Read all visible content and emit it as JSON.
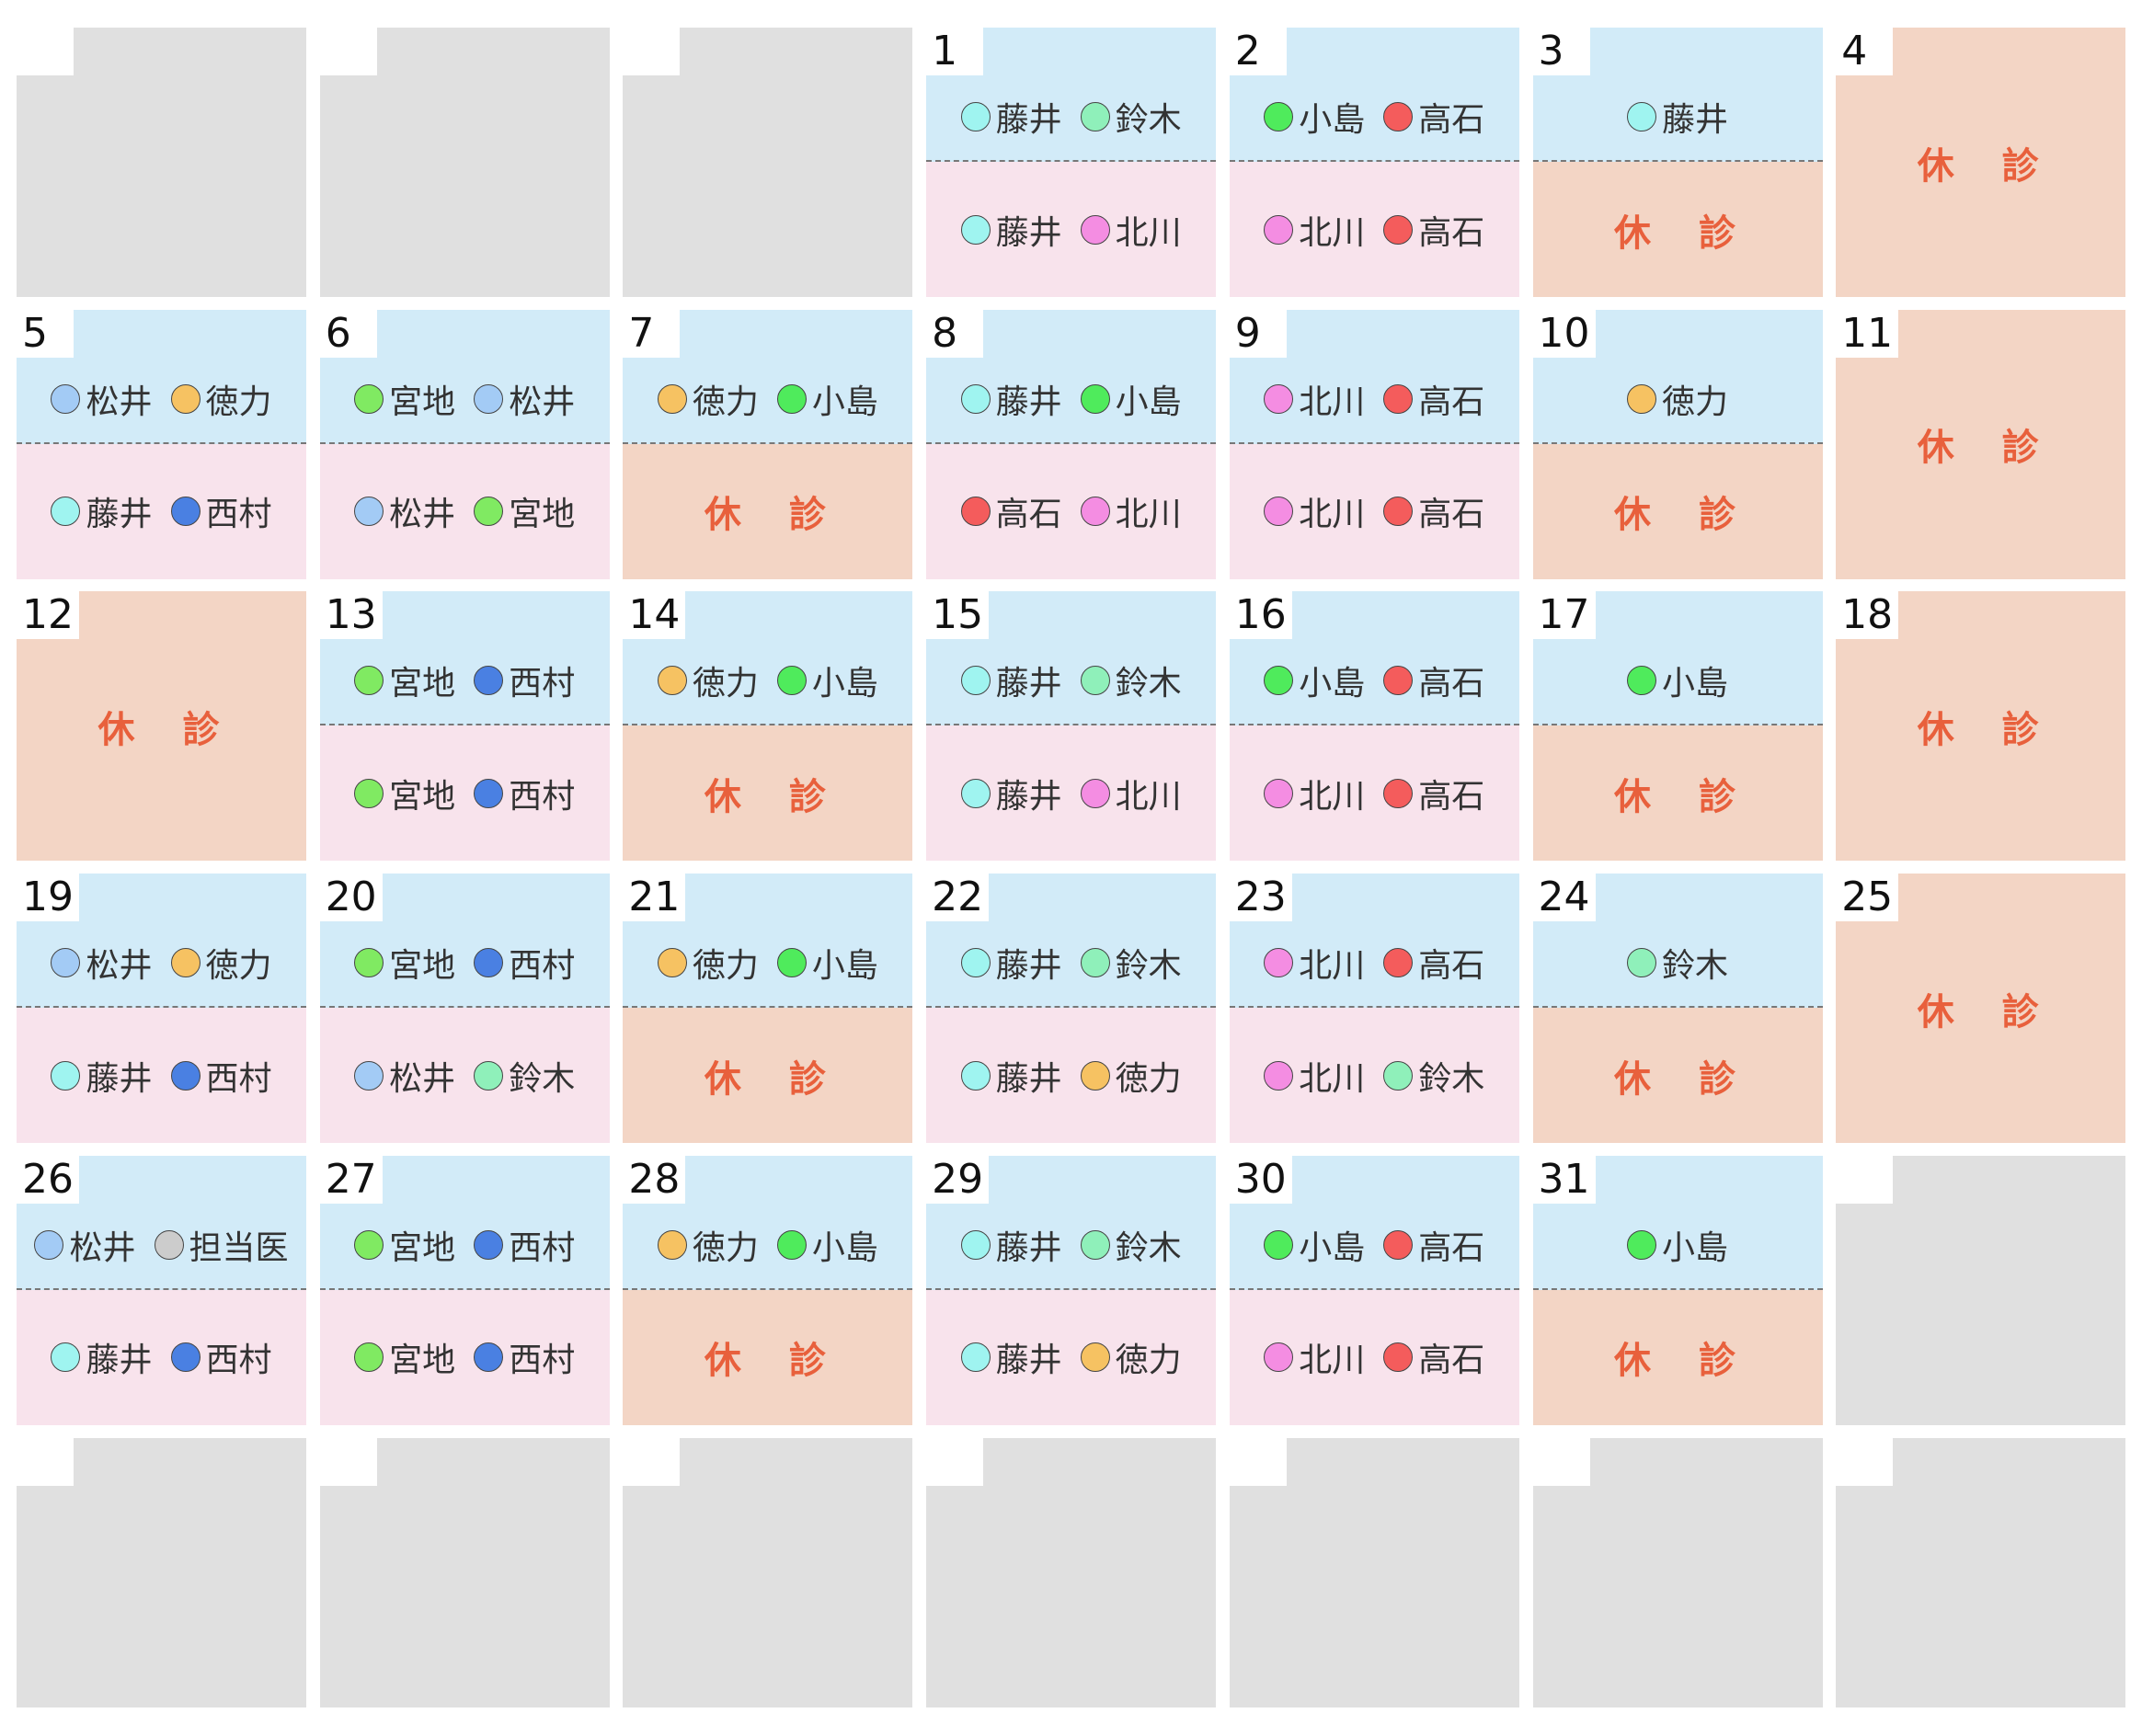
{
  "weeks": [
    [
      null,
      null,
      null,
      {
        "day": 1,
        "am": {
          "doctors": [
            {
              "name": "藤井",
              "color": "#9ff4f0"
            },
            {
              "name": "鈴木",
              "color": "#8ff0ba"
            }
          ]
        },
        "pm": {
          "doctors": [
            {
              "name": "藤井",
              "color": "#9ff4f0"
            },
            {
              "name": "北川",
              "color": "#f48de2"
            }
          ]
        }
      },
      {
        "day": 2,
        "am": {
          "doctors": [
            {
              "name": "小島",
              "color": "#4feb5c"
            },
            {
              "name": "高石",
              "color": "#f45c5c"
            }
          ]
        },
        "pm": {
          "doctors": [
            {
              "name": "北川",
              "color": "#f48de2"
            },
            {
              "name": "高石",
              "color": "#f45c5c"
            }
          ]
        }
      },
      {
        "day": 3,
        "am": {
          "doctors": [
            {
              "name": "藤井",
              "color": "#9ff4f0"
            }
          ]
        },
        "pm": {
          "closed": "休　診"
        }
      },
      {
        "day": 4,
        "closed": "休　診"
      }
    ],
    [
      {
        "day": 5,
        "am": {
          "doctors": [
            {
              "name": "松井",
              "color": "#a3cbf5"
            },
            {
              "name": "徳力",
              "color": "#f6c262"
            }
          ]
        },
        "pm": {
          "doctors": [
            {
              "name": "藤井",
              "color": "#9ff4f0"
            },
            {
              "name": "西村",
              "color": "#4a80e2"
            }
          ]
        }
      },
      {
        "day": 6,
        "am": {
          "doctors": [
            {
              "name": "宮地",
              "color": "#80ea62"
            },
            {
              "name": "松井",
              "color": "#a3cbf5"
            }
          ]
        },
        "pm": {
          "doctors": [
            {
              "name": "松井",
              "color": "#a3cbf5"
            },
            {
              "name": "宮地",
              "color": "#80ea62"
            }
          ]
        }
      },
      {
        "day": 7,
        "am": {
          "doctors": [
            {
              "name": "徳力",
              "color": "#f6c262"
            },
            {
              "name": "小島",
              "color": "#4feb5c"
            }
          ]
        },
        "pm": {
          "closed": "休　診"
        }
      },
      {
        "day": 8,
        "am": {
          "doctors": [
            {
              "name": "藤井",
              "color": "#9ff4f0"
            },
            {
              "name": "小島",
              "color": "#4feb5c"
            }
          ]
        },
        "pm": {
          "doctors": [
            {
              "name": "高石",
              "color": "#f45c5c"
            },
            {
              "name": "北川",
              "color": "#f48de2"
            }
          ]
        }
      },
      {
        "day": 9,
        "am": {
          "doctors": [
            {
              "name": "北川",
              "color": "#f48de2"
            },
            {
              "name": "高石",
              "color": "#f45c5c"
            }
          ]
        },
        "pm": {
          "doctors": [
            {
              "name": "北川",
              "color": "#f48de2"
            },
            {
              "name": "高石",
              "color": "#f45c5c"
            }
          ]
        }
      },
      {
        "day": 10,
        "am": {
          "doctors": [
            {
              "name": "徳力",
              "color": "#f6c262"
            }
          ]
        },
        "pm": {
          "closed": "休　診"
        }
      },
      {
        "day": 11,
        "closed": "休　診"
      }
    ],
    [
      {
        "day": 12,
        "closed": "休　診"
      },
      {
        "day": 13,
        "am": {
          "doctors": [
            {
              "name": "宮地",
              "color": "#80ea62"
            },
            {
              "name": "西村",
              "color": "#4a80e2"
            }
          ]
        },
        "pm": {
          "doctors": [
            {
              "name": "宮地",
              "color": "#80ea62"
            },
            {
              "name": "西村",
              "color": "#4a80e2"
            }
          ]
        }
      },
      {
        "day": 14,
        "am": {
          "doctors": [
            {
              "name": "徳力",
              "color": "#f6c262"
            },
            {
              "name": "小島",
              "color": "#4feb5c"
            }
          ]
        },
        "pm": {
          "closed": "休　診"
        }
      },
      {
        "day": 15,
        "am": {
          "doctors": [
            {
              "name": "藤井",
              "color": "#9ff4f0"
            },
            {
              "name": "鈴木",
              "color": "#8ff0ba"
            }
          ]
        },
        "pm": {
          "doctors": [
            {
              "name": "藤井",
              "color": "#9ff4f0"
            },
            {
              "name": "北川",
              "color": "#f48de2"
            }
          ]
        }
      },
      {
        "day": 16,
        "am": {
          "doctors": [
            {
              "name": "小島",
              "color": "#4feb5c"
            },
            {
              "name": "高石",
              "color": "#f45c5c"
            }
          ]
        },
        "pm": {
          "doctors": [
            {
              "name": "北川",
              "color": "#f48de2"
            },
            {
              "name": "高石",
              "color": "#f45c5c"
            }
          ]
        }
      },
      {
        "day": 17,
        "am": {
          "doctors": [
            {
              "name": "小島",
              "color": "#4feb5c"
            }
          ]
        },
        "pm": {
          "closed": "休　診"
        }
      },
      {
        "day": 18,
        "closed": "休　診"
      }
    ],
    [
      {
        "day": 19,
        "am": {
          "doctors": [
            {
              "name": "松井",
              "color": "#a3cbf5"
            },
            {
              "name": "徳力",
              "color": "#f6c262"
            }
          ]
        },
        "pm": {
          "doctors": [
            {
              "name": "藤井",
              "color": "#9ff4f0"
            },
            {
              "name": "西村",
              "color": "#4a80e2"
            }
          ]
        }
      },
      {
        "day": 20,
        "am": {
          "doctors": [
            {
              "name": "宮地",
              "color": "#80ea62"
            },
            {
              "name": "西村",
              "color": "#4a80e2"
            }
          ]
        },
        "pm": {
          "doctors": [
            {
              "name": "松井",
              "color": "#a3cbf5"
            },
            {
              "name": "鈴木",
              "color": "#8ff0ba"
            }
          ]
        }
      },
      {
        "day": 21,
        "am": {
          "doctors": [
            {
              "name": "徳力",
              "color": "#f6c262"
            },
            {
              "name": "小島",
              "color": "#4feb5c"
            }
          ]
        },
        "pm": {
          "closed": "休　診"
        }
      },
      {
        "day": 22,
        "am": {
          "doctors": [
            {
              "name": "藤井",
              "color": "#9ff4f0"
            },
            {
              "name": "鈴木",
              "color": "#8ff0ba"
            }
          ]
        },
        "pm": {
          "doctors": [
            {
              "name": "藤井",
              "color": "#9ff4f0"
            },
            {
              "name": "徳力",
              "color": "#f6c262"
            }
          ]
        }
      },
      {
        "day": 23,
        "am": {
          "doctors": [
            {
              "name": "北川",
              "color": "#f48de2"
            },
            {
              "name": "高石",
              "color": "#f45c5c"
            }
          ]
        },
        "pm": {
          "doctors": [
            {
              "name": "北川",
              "color": "#f48de2"
            },
            {
              "name": "鈴木",
              "color": "#8ff0ba"
            }
          ]
        }
      },
      {
        "day": 24,
        "am": {
          "doctors": [
            {
              "name": "鈴木",
              "color": "#8ff0ba"
            }
          ]
        },
        "pm": {
          "closed": "休　診"
        }
      },
      {
        "day": 25,
        "closed": "休　診"
      }
    ],
    [
      {
        "day": 26,
        "am": {
          "doctors": [
            {
              "name": "松井",
              "color": "#a3cbf5"
            },
            {
              "name": "担当医",
              "color": "#cccccc"
            }
          ]
        },
        "pm": {
          "doctors": [
            {
              "name": "藤井",
              "color": "#9ff4f0"
            },
            {
              "name": "西村",
              "color": "#4a80e2"
            }
          ]
        }
      },
      {
        "day": 27,
        "am": {
          "doctors": [
            {
              "name": "宮地",
              "color": "#80ea62"
            },
            {
              "name": "西村",
              "color": "#4a80e2"
            }
          ]
        },
        "pm": {
          "doctors": [
            {
              "name": "宮地",
              "color": "#80ea62"
            },
            {
              "name": "西村",
              "color": "#4a80e2"
            }
          ]
        }
      },
      {
        "day": 28,
        "am": {
          "doctors": [
            {
              "name": "徳力",
              "color": "#f6c262"
            },
            {
              "name": "小島",
              "color": "#4feb5c"
            }
          ]
        },
        "pm": {
          "closed": "休　診"
        }
      },
      {
        "day": 29,
        "am": {
          "doctors": [
            {
              "name": "藤井",
              "color": "#9ff4f0"
            },
            {
              "name": "鈴木",
              "color": "#8ff0ba"
            }
          ]
        },
        "pm": {
          "doctors": [
            {
              "name": "藤井",
              "color": "#9ff4f0"
            },
            {
              "name": "徳力",
              "color": "#f6c262"
            }
          ]
        }
      },
      {
        "day": 30,
        "am": {
          "doctors": [
            {
              "name": "小島",
              "color": "#4feb5c"
            },
            {
              "name": "高石",
              "color": "#f45c5c"
            }
          ]
        },
        "pm": {
          "doctors": [
            {
              "name": "北川",
              "color": "#f48de2"
            },
            {
              "name": "高石",
              "color": "#f45c5c"
            }
          ]
        }
      },
      {
        "day": 31,
        "am": {
          "doctors": [
            {
              "name": "小島",
              "color": "#4feb5c"
            }
          ]
        },
        "pm": {
          "closed": "休　診"
        }
      },
      null
    ],
    [
      null,
      null,
      null,
      null,
      null,
      null,
      null
    ]
  ]
}
